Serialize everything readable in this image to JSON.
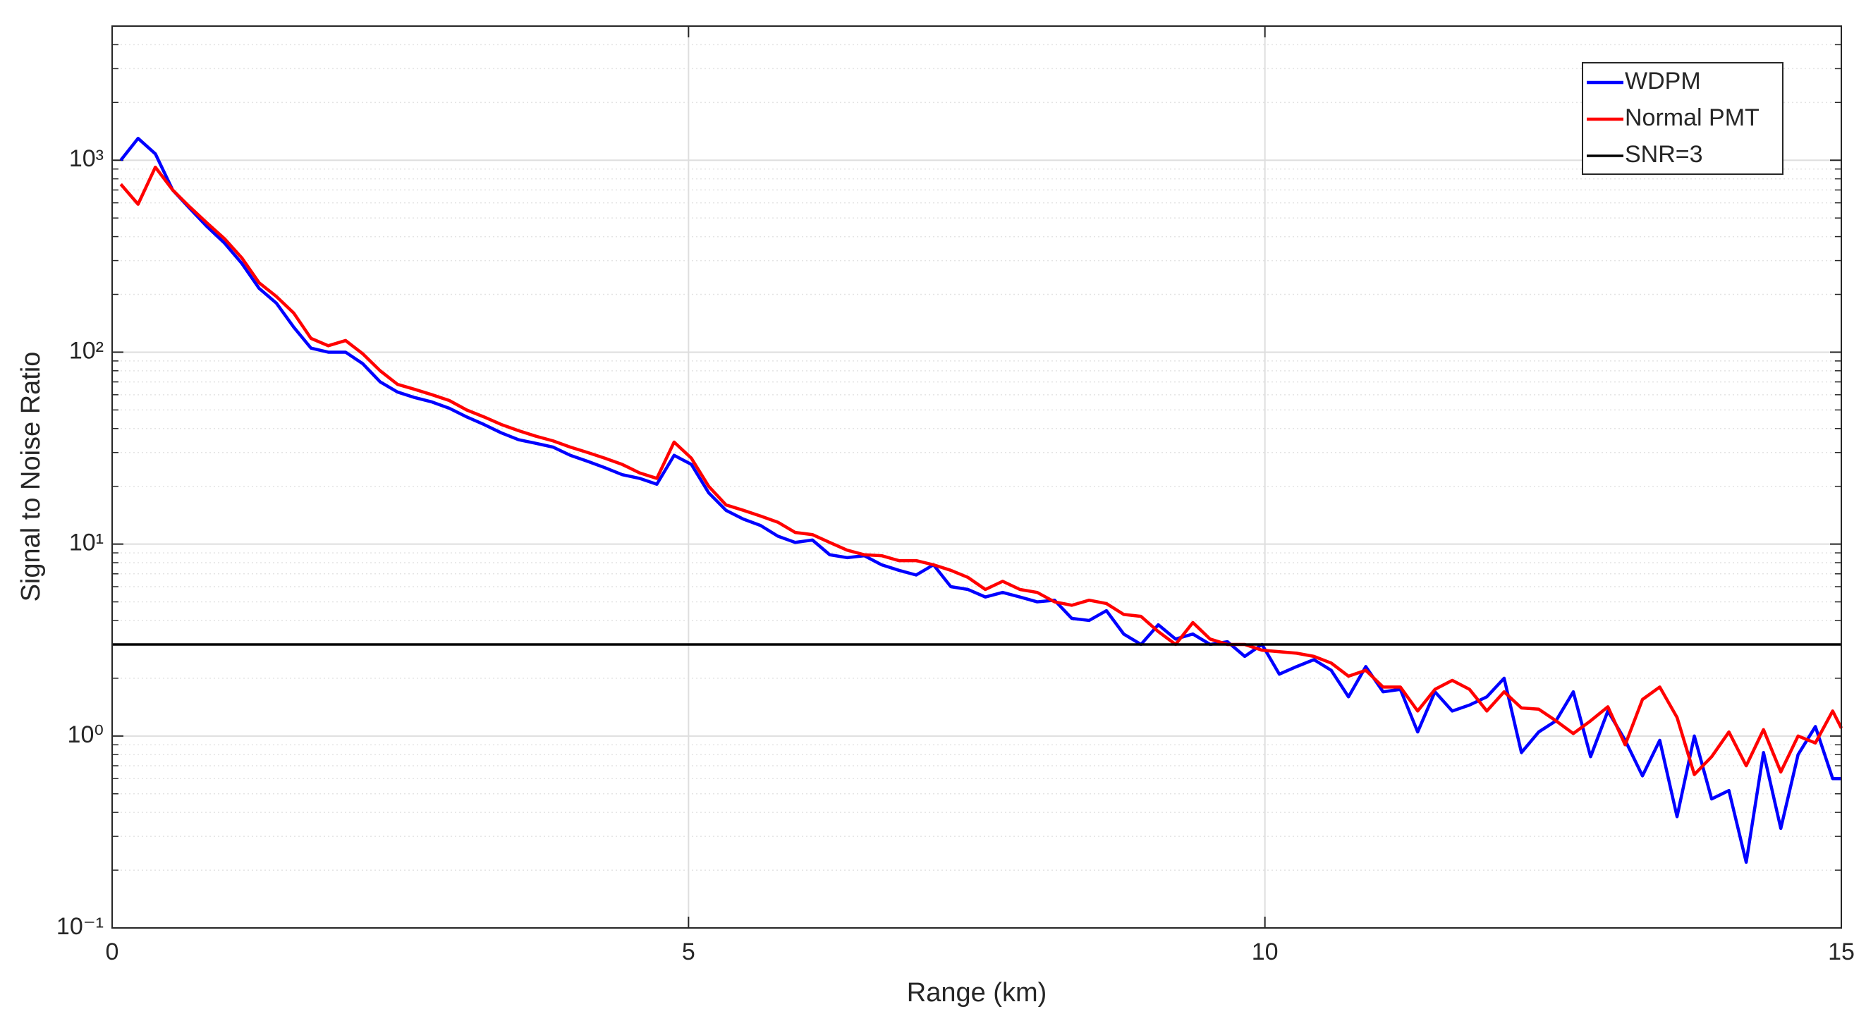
{
  "chart_data": {
    "type": "line",
    "xlabel": "Range (km)",
    "ylabel": "Signal to Noise Ratio",
    "xlim": [
      0,
      15
    ],
    "xticks": [
      0,
      5,
      10,
      15
    ],
    "ylim": [
      0.1,
      5000
    ],
    "log_y": true,
    "grid": true,
    "minor_grid": true,
    "yticks": [
      {
        "value": 0.1,
        "label": "10⁻¹"
      },
      {
        "value": 1,
        "label": "10⁰"
      },
      {
        "value": 10,
        "label": "10¹"
      },
      {
        "value": 100,
        "label": "10²"
      },
      {
        "value": 1000,
        "label": "10³"
      }
    ],
    "legend_position": "upper right",
    "x": [
      0.075,
      0.225,
      0.375,
      0.525,
      0.675,
      0.825,
      0.975,
      1.125,
      1.275,
      1.425,
      1.575,
      1.725,
      1.875,
      2.025,
      2.175,
      2.325,
      2.475,
      2.625,
      2.775,
      2.925,
      3.075,
      3.225,
      3.375,
      3.525,
      3.675,
      3.825,
      3.975,
      4.125,
      4.275,
      4.425,
      4.575,
      4.725,
      4.875,
      5.025,
      5.175,
      5.325,
      5.475,
      5.625,
      5.775,
      5.925,
      6.075,
      6.225,
      6.375,
      6.525,
      6.675,
      6.825,
      6.975,
      7.125,
      7.275,
      7.425,
      7.575,
      7.725,
      7.875,
      8.025,
      8.175,
      8.325,
      8.475,
      8.625,
      8.775,
      8.925,
      9.075,
      9.225,
      9.375,
      9.525,
      9.675,
      9.825,
      9.975,
      10.125,
      10.275,
      10.425,
      10.575,
      10.725,
      10.875,
      11.025,
      11.175,
      11.325,
      11.475,
      11.625,
      11.775,
      11.925,
      12.075,
      12.225,
      12.375,
      12.525,
      12.675,
      12.825,
      12.975,
      13.125,
      13.275,
      13.425,
      13.575,
      13.725,
      13.875,
      14.025,
      14.175,
      14.325,
      14.475,
      14.625,
      14.775,
      14.925,
      15
    ],
    "series": [
      {
        "name": "WDPM",
        "color": "#0000ff",
        "values": [
          1000,
          1300,
          1080,
          700,
          560,
          450,
          370,
          290,
          215,
          180,
          135,
          105,
          100,
          100,
          87,
          70,
          62,
          58,
          55,
          51,
          46,
          42,
          38,
          35,
          33.5,
          32,
          29,
          27,
          25,
          23,
          22,
          20.5,
          29,
          26,
          18.5,
          15,
          13.5,
          12.5,
          11,
          10.2,
          10.5,
          8.8,
          8.5,
          8.7,
          7.8,
          7.3,
          6.9,
          7.8,
          6,
          5.8,
          5.3,
          5.6,
          5.3,
          5,
          5.1,
          4.1,
          4,
          4.5,
          3.4,
          3,
          3.8,
          3.2,
          3.4,
          3,
          3.1,
          2.6,
          3,
          2.1,
          2.3,
          2.5,
          2.2,
          1.6,
          2.3,
          1.7,
          1.75,
          1.05,
          1.7,
          1.35,
          1.45,
          1.6,
          2,
          0.82,
          1.05,
          1.2,
          1.7,
          0.78,
          1.35,
          0.95,
          0.62,
          0.95,
          0.38,
          1,
          0.47,
          0.52,
          0.22,
          0.82,
          0.33,
          0.8,
          1.12,
          0.6,
          0.6
        ]
      },
      {
        "name": "Normal PMT",
        "color": "#ff0000",
        "values": [
          750,
          590,
          920,
          700,
          570,
          470,
          390,
          310,
          230,
          195,
          160,
          118,
          108,
          115,
          98,
          80,
          68,
          64,
          60,
          56,
          50,
          46,
          42,
          39,
          36.5,
          34.5,
          32,
          30,
          28,
          26,
          23.5,
          22,
          34,
          28,
          20,
          16,
          15,
          14,
          13,
          11.5,
          11.2,
          10.2,
          9.3,
          8.8,
          8.7,
          8.2,
          8.2,
          7.8,
          7.3,
          6.7,
          5.8,
          6.4,
          5.8,
          5.6,
          5,
          4.8,
          5.1,
          4.9,
          4.3,
          4.2,
          3.5,
          3,
          3.9,
          3.2,
          3,
          3,
          2.8,
          2.75,
          2.7,
          2.6,
          2.4,
          2.05,
          2.2,
          1.8,
          1.8,
          1.35,
          1.75,
          1.95,
          1.75,
          1.35,
          1.7,
          1.4,
          1.38,
          1.2,
          1.03,
          1.2,
          1.42,
          0.9,
          1.55,
          1.8,
          1.25,
          0.63,
          0.78,
          1.05,
          0.7,
          1.08,
          0.65,
          1,
          0.92,
          1.35,
          1.1
        ]
      }
    ],
    "hline": {
      "name": "SNR=3",
      "value": 3,
      "color": "#000000"
    }
  }
}
